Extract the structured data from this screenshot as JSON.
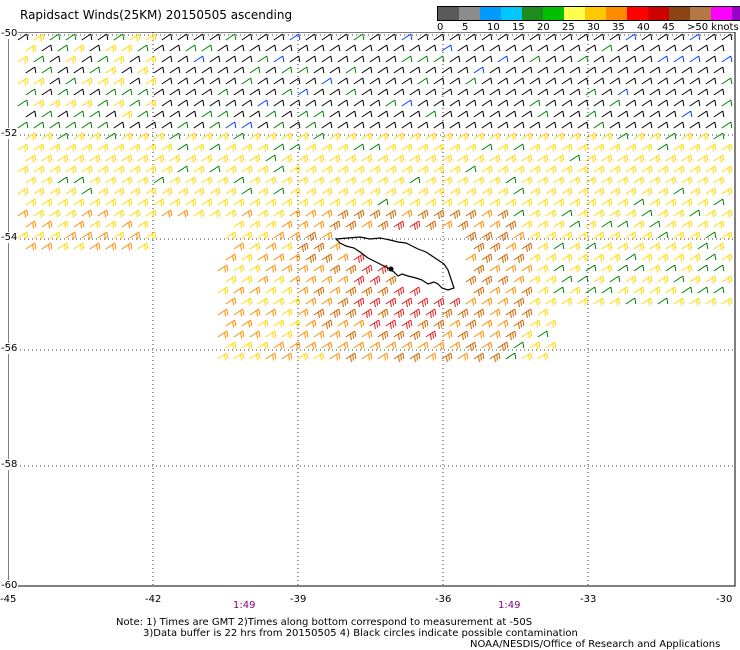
{
  "title": "Rapidsact Winds(25KM) 20150505 ascending",
  "legend": {
    "colors": [
      "#5a5a5a",
      "#8c8c8c",
      "#009bff",
      "#00c8ff",
      "#1e8c1e",
      "#00c000",
      "#ffff50",
      "#ffc800",
      "#ff8c00",
      "#ff0000",
      "#cd0000",
      "#8b4513",
      "#b47846",
      "#ff00ff",
      "#9600c8",
      "#4b0082"
    ],
    "labels": [
      "0",
      "5",
      "10",
      "15",
      "20",
      "25",
      "30",
      "35",
      "40",
      "45",
      ">50 knots"
    ]
  },
  "lat_labels": [
    "-50",
    "-52",
    "-54",
    "-56",
    "-58",
    "-60"
  ],
  "lon_labels": [
    "-45",
    "-42",
    "-39",
    "-36",
    "-33",
    "-30"
  ],
  "times": [
    "1:49",
    "1:49"
  ],
  "note": [
    "Note: 1) Times are GMT 2)Times along bottom correspond to measurement at -50S",
    "3)Data buffer is 22 hrs from 20150505 4) Black circles indicate possible contamination"
  ],
  "credit": "NOAA/NESDIS/Office of Research and Applications",
  "wind_colors": {
    "calm": "#000000",
    "light": "#0040ff",
    "moderate": "#008000",
    "fresh": "#ffd700",
    "strong": "#ff8c00",
    "gale": "#cc6600",
    "storm": "#dd2222"
  }
}
